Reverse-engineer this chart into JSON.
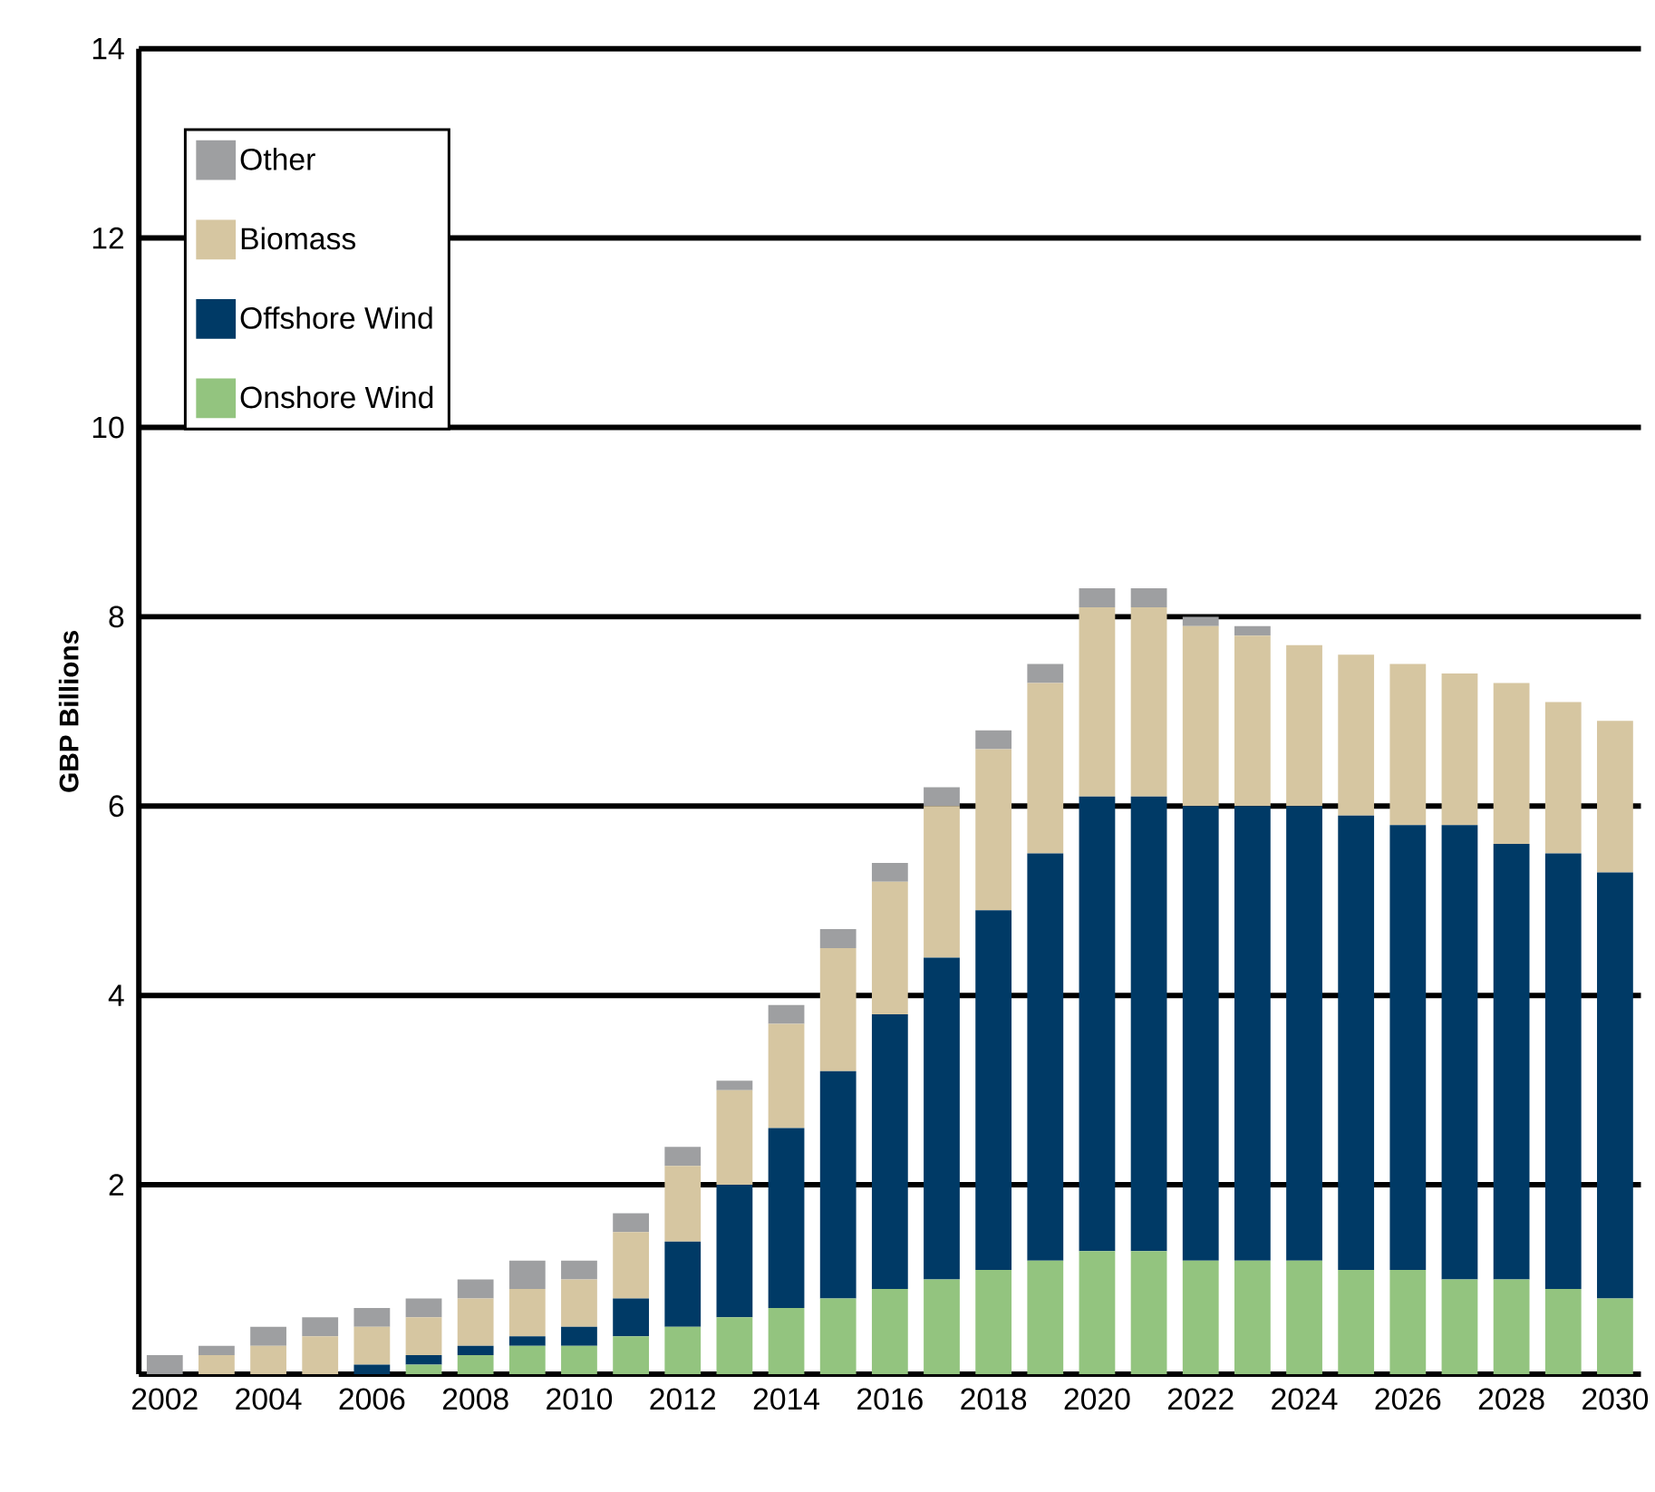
{
  "chart_data": {
    "type": "bar",
    "stacked": true,
    "ylabel": "GBP Billions",
    "categories": [
      "2002",
      null,
      "2004",
      null,
      "2006",
      null,
      "2008",
      null,
      "2010",
      null,
      "2012",
      null,
      "2014",
      null,
      "2016",
      null,
      "2018",
      null,
      "2020",
      null,
      "2022",
      null,
      "2024",
      null,
      "2026",
      null,
      "2028",
      null,
      "2030"
    ],
    "series": [
      {
        "name": "Onshore Wind",
        "color": "#93c47f",
        "values": [
          0,
          0,
          0,
          0,
          0,
          0.1,
          0.2,
          0.3,
          0.3,
          0.4,
          0.5,
          0.6,
          0.7,
          0.8,
          0.9,
          1.0,
          1.1,
          1.2,
          1.3,
          1.3,
          1.2,
          1.2,
          1.2,
          1.1,
          1.1,
          1.0,
          1.0,
          0.9,
          0.8
        ]
      },
      {
        "name": "Offshore Wind",
        "color": "#003a66",
        "values": [
          0,
          0,
          0,
          0,
          0.1,
          0.1,
          0.1,
          0.1,
          0.2,
          0.4,
          0.9,
          1.4,
          1.9,
          2.4,
          2.9,
          3.4,
          3.8,
          4.3,
          4.8,
          4.8,
          4.8,
          4.8,
          4.8,
          4.8,
          4.7,
          4.8,
          4.6,
          4.6,
          4.5
        ]
      },
      {
        "name": "Biomass",
        "color": "#d6c6a1",
        "values": [
          0,
          0.2,
          0.3,
          0.4,
          0.4,
          0.4,
          0.5,
          0.5,
          0.5,
          0.7,
          0.8,
          1.0,
          1.1,
          1.3,
          1.4,
          1.6,
          1.7,
          1.8,
          2.0,
          2.0,
          1.9,
          1.8,
          1.7,
          1.7,
          1.7,
          1.6,
          1.7,
          1.6,
          1.6
        ]
      },
      {
        "name": "Other",
        "color": "#9e9fa1",
        "values": [
          0.2,
          0.1,
          0.2,
          0.2,
          0.2,
          0.2,
          0.2,
          0.3,
          0.2,
          0.2,
          0.2,
          0.1,
          0.2,
          0.2,
          0.2,
          0.2,
          0.2,
          0.2,
          0.2,
          0.2,
          0.1,
          0.1,
          0,
          0,
          0,
          0,
          0,
          0,
          0
        ]
      }
    ],
    "ylim": [
      0,
      14
    ],
    "yticks": [
      2,
      4,
      6,
      8,
      10,
      12,
      14
    ],
    "grid": "y",
    "legend": "top left"
  }
}
